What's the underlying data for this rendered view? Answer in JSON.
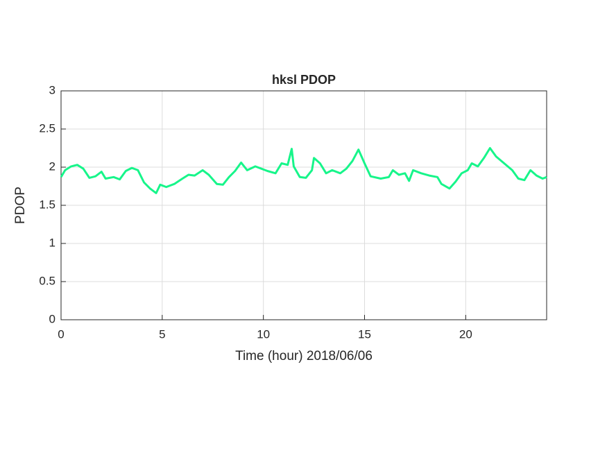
{
  "chart_data": {
    "type": "line",
    "title": "hksl PDOP",
    "xlabel": "Time (hour)  2018/06/06",
    "ylabel": "PDOP",
    "xlim": [
      0,
      24
    ],
    "xticks": [
      0,
      5,
      10,
      15,
      20
    ],
    "ylim": [
      0,
      3
    ],
    "yticks": [
      0,
      0.5,
      1,
      1.5,
      2,
      2.5,
      3
    ],
    "grid": true,
    "x": [
      0,
      0.2,
      0.5,
      0.8,
      1.1,
      1.4,
      1.7,
      2.0,
      2.2,
      2.6,
      2.9,
      3.2,
      3.5,
      3.8,
      4.1,
      4.4,
      4.7,
      4.9,
      5.2,
      5.6,
      6.0,
      6.3,
      6.6,
      7.0,
      7.3,
      7.7,
      8.0,
      8.3,
      8.6,
      8.9,
      9.2,
      9.6,
      9.9,
      10.2,
      10.6,
      10.9,
      11.2,
      11.4,
      11.5,
      11.8,
      12.1,
      12.4,
      12.5,
      12.8,
      13.1,
      13.4,
      13.8,
      14.1,
      14.4,
      14.7,
      15.0,
      15.3,
      15.8,
      16.2,
      16.4,
      16.7,
      17.0,
      17.2,
      17.4,
      17.8,
      18.2,
      18.6,
      18.8,
      19.2,
      19.5,
      19.8,
      20.1,
      20.3,
      20.6,
      20.9,
      21.2,
      21.5,
      21.9,
      22.3,
      22.6,
      22.9,
      23.2,
      23.5,
      23.8,
      24.0
    ],
    "series": [
      {
        "name": "PDOP",
        "color": "#17f58a",
        "values": [
          1.87,
          1.96,
          2.01,
          2.03,
          1.98,
          1.86,
          1.88,
          1.94,
          1.85,
          1.87,
          1.84,
          1.95,
          1.99,
          1.96,
          1.8,
          1.72,
          1.66,
          1.77,
          1.74,
          1.78,
          1.85,
          1.9,
          1.89,
          1.96,
          1.9,
          1.78,
          1.77,
          1.87,
          1.95,
          2.06,
          1.96,
          2.01,
          1.98,
          1.95,
          1.92,
          2.05,
          2.03,
          2.24,
          2.01,
          1.87,
          1.86,
          1.96,
          2.12,
          2.05,
          1.92,
          1.96,
          1.92,
          1.98,
          2.08,
          2.23,
          2.05,
          1.88,
          1.85,
          1.87,
          1.96,
          1.9,
          1.92,
          1.82,
          1.96,
          1.92,
          1.89,
          1.87,
          1.78,
          1.72,
          1.81,
          1.92,
          1.96,
          2.05,
          2.01,
          2.12,
          2.25,
          2.14,
          2.05,
          1.96,
          1.85,
          1.83,
          1.96,
          1.89,
          1.85,
          1.87
        ]
      }
    ]
  }
}
